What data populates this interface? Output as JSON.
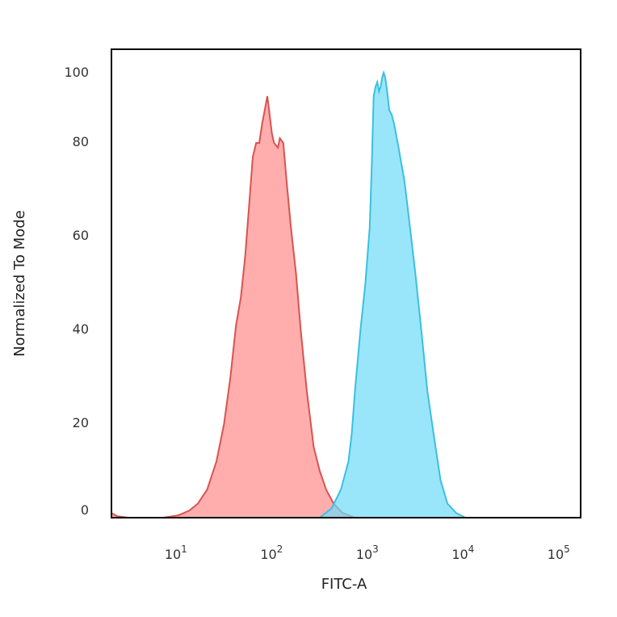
{
  "chart_data": {
    "type": "area",
    "title": "",
    "xlabel": "FITC-A",
    "ylabel": "Normalized To Mode",
    "x_scale": "log",
    "xlim": [
      2,
      160000
    ],
    "ylim": [
      0,
      100
    ],
    "x_ticks": [
      {
        "value": 10,
        "base": "10",
        "exp": "1"
      },
      {
        "value": 100,
        "base": "10",
        "exp": "2"
      },
      {
        "value": 1000,
        "base": "10",
        "exp": "3"
      },
      {
        "value": 10000,
        "base": "10",
        "exp": "4"
      },
      {
        "value": 100000,
        "base": "10",
        "exp": "5"
      }
    ],
    "y_ticks": [
      0,
      20,
      40,
      60,
      80,
      100
    ],
    "grid": false,
    "legend": "none",
    "series": [
      {
        "color": "#d9534f",
        "fill": "#ff8a8a",
        "points": [
          [
            2,
            1
          ],
          [
            2.3,
            0.3
          ],
          [
            3,
            0
          ],
          [
            7,
            0
          ],
          [
            10,
            0.5
          ],
          [
            13,
            1.5
          ],
          [
            16,
            3
          ],
          [
            20,
            6
          ],
          [
            25,
            12
          ],
          [
            30,
            20
          ],
          [
            35,
            30
          ],
          [
            40,
            41
          ],
          [
            45,
            47
          ],
          [
            50,
            56
          ],
          [
            55,
            67
          ],
          [
            60,
            77
          ],
          [
            65,
            80
          ],
          [
            70,
            80
          ],
          [
            75,
            84
          ],
          [
            80,
            87
          ],
          [
            85,
            90
          ],
          [
            90,
            86
          ],
          [
            95,
            82
          ],
          [
            100,
            80
          ],
          [
            110,
            79
          ],
          [
            115,
            81
          ],
          [
            125,
            80
          ],
          [
            135,
            72
          ],
          [
            150,
            62
          ],
          [
            170,
            52
          ],
          [
            190,
            40
          ],
          [
            220,
            27
          ],
          [
            260,
            15
          ],
          [
            300,
            10
          ],
          [
            350,
            6
          ],
          [
            420,
            3
          ],
          [
            520,
            1
          ],
          [
            700,
            0
          ]
        ]
      },
      {
        "color": "#3bbfe0",
        "fill": "#6ddcf9",
        "points": [
          [
            300,
            0
          ],
          [
            400,
            2
          ],
          [
            500,
            6
          ],
          [
            600,
            12
          ],
          [
            650,
            18
          ],
          [
            700,
            27
          ],
          [
            800,
            40
          ],
          [
            900,
            50
          ],
          [
            1000,
            62
          ],
          [
            1050,
            75
          ],
          [
            1100,
            90
          ],
          [
            1150,
            92
          ],
          [
            1200,
            93
          ],
          [
            1250,
            91
          ],
          [
            1300,
            92
          ],
          [
            1350,
            94
          ],
          [
            1400,
            95
          ],
          [
            1450,
            94
          ],
          [
            1500,
            92
          ],
          [
            1600,
            87
          ],
          [
            1700,
            86
          ],
          [
            1800,
            84
          ],
          [
            2000,
            79
          ],
          [
            2300,
            72
          ],
          [
            2600,
            63
          ],
          [
            3000,
            52
          ],
          [
            3500,
            39
          ],
          [
            4000,
            27
          ],
          [
            4800,
            16
          ],
          [
            5500,
            8
          ],
          [
            6500,
            3
          ],
          [
            8000,
            1
          ],
          [
            10000,
            0
          ],
          [
            14000,
            0
          ]
        ]
      }
    ]
  }
}
